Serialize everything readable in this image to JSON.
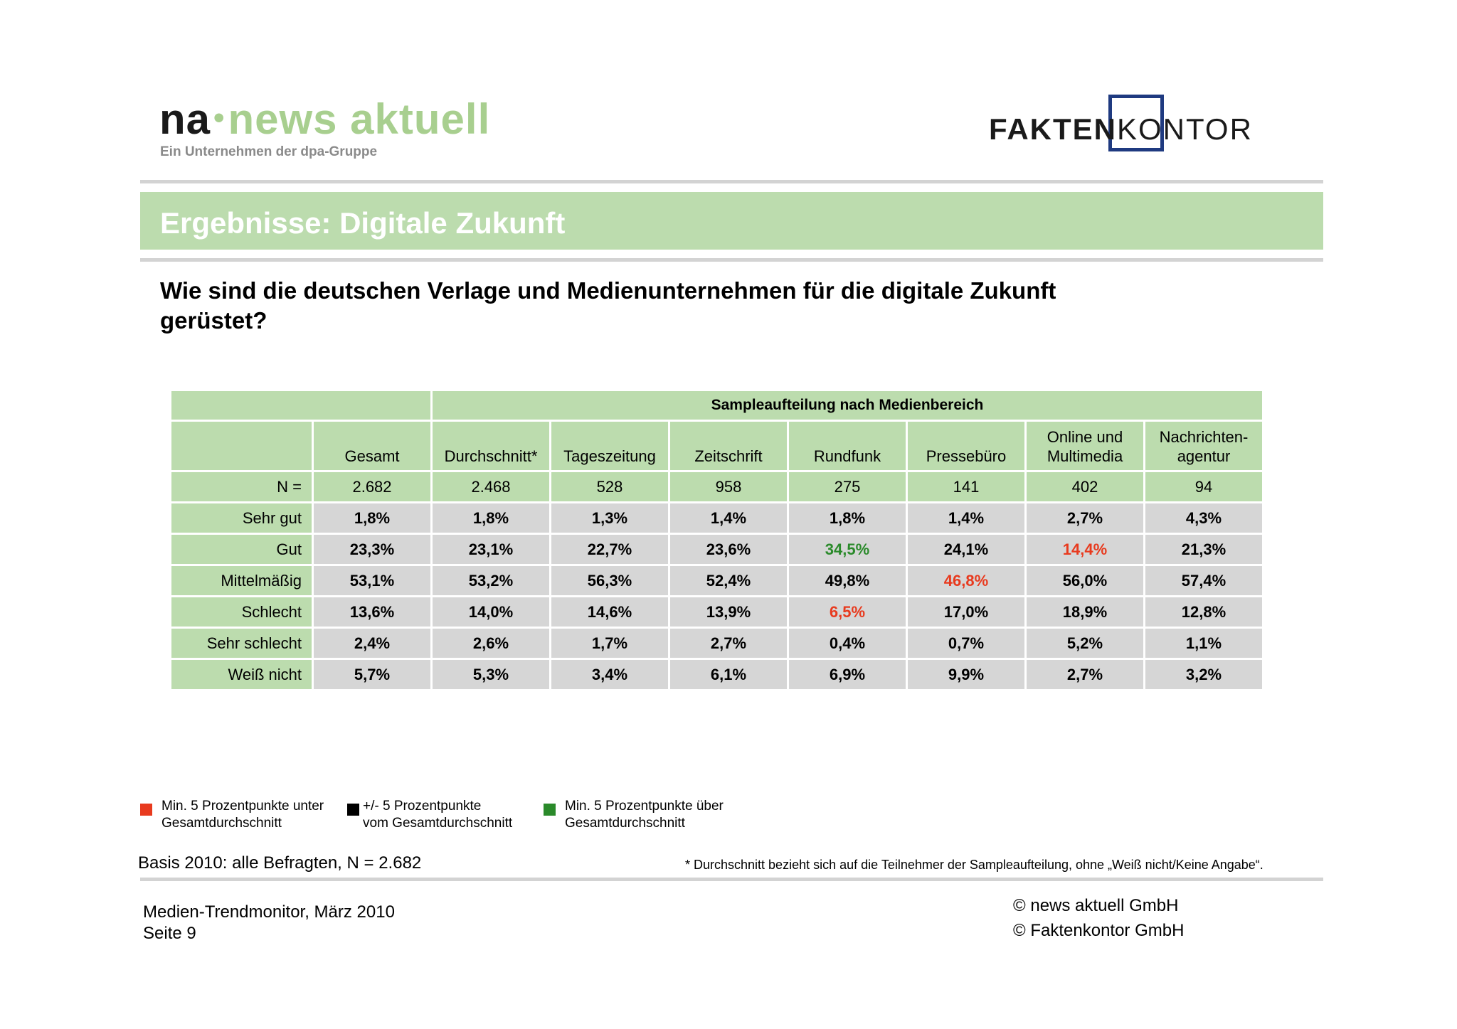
{
  "header": {
    "na_logo": {
      "part1": "na",
      "dot": "•",
      "part2": "news aktuell"
    },
    "na_subtitle": "Ein Unternehmen der dpa-Gruppe",
    "fk_logo": {
      "bold": "FAKTEN",
      "light": "KONTOR"
    }
  },
  "banner": {
    "title": "Ergebnisse: Digitale Zukunft"
  },
  "question": "Wie sind die deutschen Verlage und Medienunternehmen für die digitale Zukunft gerüstet?",
  "table": {
    "group_header": "Sampleaufteilung nach Medienbereich",
    "columns": [
      "Gesamt",
      "Durchschnitt*",
      "Tageszeitung",
      "Zeitschrift",
      "Rundfunk",
      "Pressebüro",
      "Online und Multimedia",
      "Nachrichten-agentur"
    ],
    "n_row": {
      "label": "N =",
      "values": [
        "2.682",
        "2.468",
        "528",
        "958",
        "275",
        "141",
        "402",
        "94"
      ]
    },
    "rows": [
      {
        "label": "Sehr gut",
        "values": [
          "1,8%",
          "1,8%",
          "1,3%",
          "1,4%",
          "1,8%",
          "1,4%",
          "2,7%",
          "4,3%"
        ],
        "colors": [
          "",
          "",
          "",
          "",
          "",
          "",
          "",
          ""
        ]
      },
      {
        "label": "Gut",
        "values": [
          "23,3%",
          "23,1%",
          "22,7%",
          "23,6%",
          "34,5%",
          "24,1%",
          "14,4%",
          "21,3%"
        ],
        "colors": [
          "",
          "",
          "",
          "",
          "green",
          "",
          "red",
          ""
        ]
      },
      {
        "label": "Mittelmäßig",
        "values": [
          "53,1%",
          "53,2%",
          "56,3%",
          "52,4%",
          "49,8%",
          "46,8%",
          "56,0%",
          "57,4%"
        ],
        "colors": [
          "",
          "",
          "",
          "",
          "",
          "red",
          "",
          ""
        ]
      },
      {
        "label": "Schlecht",
        "values": [
          "13,6%",
          "14,0%",
          "14,6%",
          "13,9%",
          "6,5%",
          "17,0%",
          "18,9%",
          "12,8%"
        ],
        "colors": [
          "",
          "",
          "",
          "",
          "red",
          "",
          "",
          ""
        ]
      },
      {
        "label": "Sehr schlecht",
        "values": [
          "2,4%",
          "2,6%",
          "1,7%",
          "2,7%",
          "0,4%",
          "0,7%",
          "5,2%",
          "1,1%"
        ],
        "colors": [
          "",
          "",
          "",
          "",
          "",
          "",
          "",
          ""
        ]
      },
      {
        "label": "Weiß nicht",
        "values": [
          "5,7%",
          "5,3%",
          "3,4%",
          "6,1%",
          "6,9%",
          "9,9%",
          "2,7%",
          "3,2%"
        ],
        "colors": [
          "",
          "",
          "",
          "",
          "",
          "",
          "",
          ""
        ]
      }
    ]
  },
  "legend": [
    {
      "color": "#e83a1e",
      "line1": "Min. 5 Prozentpunkte unter",
      "line2": "Gesamtdurchschnitt"
    },
    {
      "color": "#000000",
      "line1": "+/- 5 Prozentpunkte",
      "line2": "vom Gesamtdurchschnitt"
    },
    {
      "color": "#2a8a2a",
      "line1": "Min. 5 Prozentpunkte über",
      "line2": "Gesamtdurchschnitt"
    }
  ],
  "basis": "Basis 2010: alle Befragten, N = 2.682",
  "footnote": "* Durchschnitt bezieht sich auf die Teilnehmer der Sampleaufteilung, ohne „Weiß nicht/Keine Angabe“.",
  "footer": {
    "source": "Medien-Trendmonitor, März 2010",
    "page": "Seite 9",
    "copyright1": "© news aktuell GmbH",
    "copyright2": "© Faktenkontor GmbH"
  }
}
